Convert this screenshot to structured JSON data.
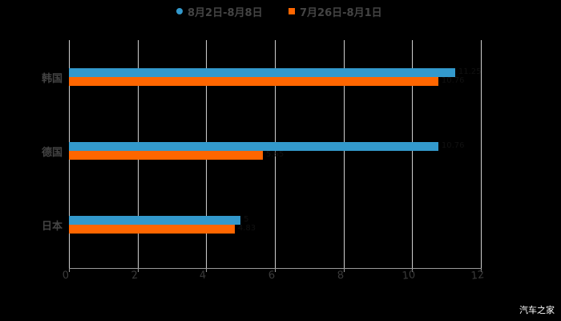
{
  "chart_data": {
    "type": "bar",
    "orientation": "horizontal",
    "title": "",
    "categories": [
      "韩国",
      "德国",
      "日本"
    ],
    "series": [
      {
        "name": "8月2日-8月8日",
        "color": "#3399cc",
        "marker": "circle",
        "values": [
          11.25,
          10.76,
          5.0
        ]
      },
      {
        "name": "7月26日-8月1日",
        "color": "#ff6600",
        "marker": "square",
        "values": [
          10.76,
          5.65,
          4.83
        ]
      }
    ],
    "xlabel": "",
    "ylabel": "",
    "xlim": [
      0,
      12
    ],
    "xticks": [
      "0",
      "2",
      "4",
      "6",
      "8",
      "10",
      "12"
    ],
    "grid": true,
    "legend_position": "top"
  },
  "legend": [
    {
      "label": "8月2日-8月8日",
      "color": "#3399cc"
    },
    {
      "label": "7月26日-8月1日",
      "color": "#ff6600"
    }
  ],
  "watermark": "汽车之家"
}
